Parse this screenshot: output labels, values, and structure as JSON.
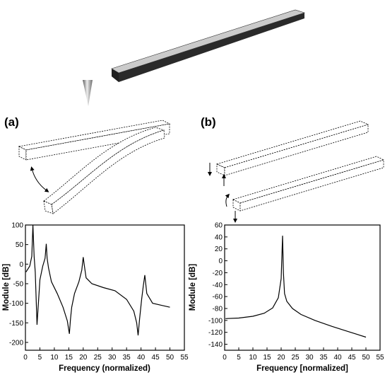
{
  "figure": {
    "panel_a_label": "(a)",
    "panel_b_label": "(b)"
  },
  "chart_data": [
    {
      "type": "line",
      "panel": "a",
      "xlabel": "Frequency (normalized)",
      "ylabel": "Module [dB]",
      "xlim": [
        0,
        55
      ],
      "ylim": [
        -220,
        100
      ],
      "xticks": [
        0,
        5,
        10,
        15,
        20,
        25,
        30,
        35,
        40,
        45,
        50,
        55
      ],
      "yticks": [
        100,
        50,
        0,
        -50,
        -100,
        -150,
        -200
      ],
      "grid": false,
      "series": [
        {
          "x": [
            0.2,
            1.5,
            2.2,
            2.6,
            3.0,
            3.4,
            4.0,
            5.0,
            6.0,
            6.8,
            7.2,
            7.5,
            8.0,
            9.0,
            11.0,
            13.0,
            14.5,
            15.2,
            15.6,
            16.0,
            17.0,
            18.5,
            19.5,
            20.0,
            20.4,
            21.0,
            23.0,
            27.0,
            31.0,
            35.0,
            37.5,
            38.5,
            39.0,
            39.5,
            40.2,
            40.8,
            41.3,
            42.0,
            44.0,
            47.0,
            50.0
          ],
          "y": [
            -20,
            -5,
            20,
            100,
            20,
            -20,
            -155,
            -40,
            -5,
            15,
            52,
            15,
            -10,
            -45,
            -75,
            -110,
            -145,
            -178,
            -140,
            -110,
            -75,
            -45,
            -15,
            18,
            -5,
            -35,
            -50,
            -60,
            -68,
            -90,
            -120,
            -150,
            -182,
            -140,
            -90,
            -55,
            -28,
            -75,
            -100,
            -105,
            -110
          ]
        }
      ]
    },
    {
      "type": "line",
      "panel": "b",
      "xlabel": "Frequency [normalized]",
      "ylabel": "Module [dB]",
      "xlim": [
        0,
        55
      ],
      "ylim": [
        -150,
        60
      ],
      "xticks": [
        0,
        5,
        10,
        15,
        20,
        25,
        30,
        35,
        40,
        45,
        50,
        55
      ],
      "yticks": [
        60,
        40,
        20,
        0,
        -20,
        -40,
        -60,
        -80,
        -100,
        -120,
        -140
      ],
      "grid": false,
      "series": [
        {
          "x": [
            0.3,
            5,
            10,
            14,
            17,
            19,
            20,
            20.5,
            20.8,
            21.2,
            22,
            24,
            27,
            32,
            38,
            44,
            50
          ],
          "y": [
            -97,
            -96,
            -93,
            -88,
            -79,
            -62,
            -30,
            42,
            -20,
            -55,
            -68,
            -80,
            -90,
            -100,
            -110,
            -119,
            -128
          ]
        }
      ]
    }
  ]
}
